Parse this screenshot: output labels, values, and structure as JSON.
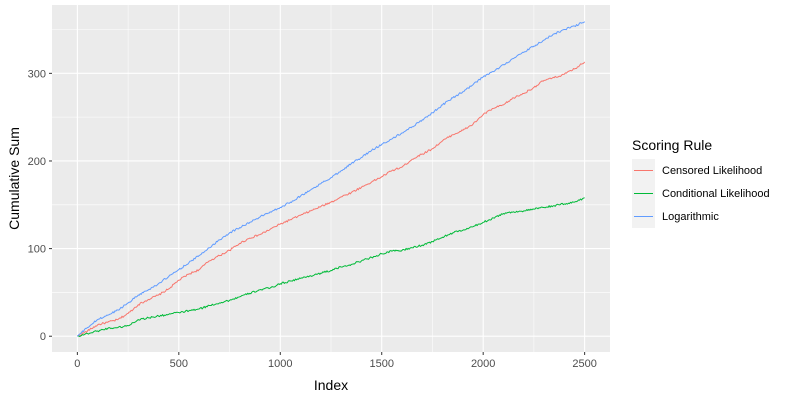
{
  "chart_data": {
    "type": "line",
    "title": "",
    "xlabel": "Index",
    "ylabel": "Cumulative Sum",
    "xlim": [
      -125,
      2625
    ],
    "ylim": [
      -18,
      378
    ],
    "x_ticks": [
      0,
      500,
      1000,
      1500,
      2000,
      2500
    ],
    "x_tick_labels": [
      "0",
      "500",
      "1000",
      "1500",
      "2000",
      "2500"
    ],
    "y_ticks": [
      0,
      100,
      200,
      300
    ],
    "y_tick_labels": [
      "0",
      "100",
      "200",
      "300"
    ],
    "grid": true,
    "legend_position": "right",
    "legend_title": "Scoring Rule",
    "panel_background": "#ebebeb",
    "grid_color": "#ffffff",
    "series": [
      {
        "name": "Censored Likelihood",
        "color": "#f8766d",
        "x": [
          0,
          50,
          100,
          150,
          200,
          250,
          300,
          350,
          400,
          450,
          500,
          550,
          600,
          650,
          700,
          750,
          800,
          850,
          900,
          950,
          1000,
          1050,
          1100,
          1150,
          1200,
          1250,
          1300,
          1350,
          1400,
          1450,
          1500,
          1550,
          1600,
          1650,
          1700,
          1750,
          1800,
          1850,
          1900,
          1950,
          2000,
          2050,
          2100,
          2150,
          2200,
          2250,
          2300,
          2350,
          2400,
          2450,
          2500
        ],
        "values": [
          0,
          6,
          13,
          16,
          19,
          26,
          36,
          42,
          47,
          54,
          64,
          71,
          76,
          86,
          92,
          98,
          106,
          112,
          116,
          122,
          128,
          133,
          138,
          143,
          148,
          153,
          159,
          164,
          170,
          176,
          182,
          189,
          193,
          202,
          208,
          214,
          223,
          230,
          235,
          242,
          253,
          260,
          264,
          272,
          277,
          284,
          292,
          295,
          299,
          305,
          313
        ]
      },
      {
        "name": "Conditional Likelihood",
        "color": "#00ba38",
        "x": [
          0,
          50,
          100,
          150,
          200,
          250,
          300,
          350,
          400,
          450,
          500,
          550,
          600,
          650,
          700,
          750,
          800,
          850,
          900,
          950,
          1000,
          1050,
          1100,
          1150,
          1200,
          1250,
          1300,
          1350,
          1400,
          1450,
          1500,
          1550,
          1600,
          1650,
          1700,
          1750,
          1800,
          1850,
          1900,
          1950,
          2000,
          2050,
          2100,
          2150,
          2200,
          2250,
          2300,
          2350,
          2400,
          2450,
          2500
        ],
        "values": [
          0,
          3,
          6,
          9,
          10,
          12,
          19,
          21,
          23,
          25,
          27,
          29,
          31,
          35,
          38,
          41,
          45,
          49,
          53,
          55,
          60,
          63,
          66,
          69,
          72,
          75,
          79,
          82,
          86,
          90,
          94,
          97,
          98,
          101,
          104,
          108,
          113,
          118,
          121,
          125,
          130,
          135,
          140,
          142,
          143,
          145,
          147,
          149,
          151,
          153,
          158
        ]
      },
      {
        "name": "Logarithmic",
        "color": "#619cff",
        "x": [
          0,
          50,
          100,
          150,
          200,
          250,
          300,
          350,
          400,
          450,
          500,
          550,
          600,
          650,
          700,
          750,
          800,
          850,
          900,
          950,
          1000,
          1050,
          1100,
          1150,
          1200,
          1250,
          1300,
          1350,
          1400,
          1450,
          1500,
          1550,
          1600,
          1650,
          1700,
          1750,
          1800,
          1850,
          1900,
          1950,
          2000,
          2050,
          2100,
          2150,
          2200,
          2250,
          2300,
          2350,
          2400,
          2450,
          2500
        ],
        "values": [
          0,
          10,
          19,
          24,
          30,
          38,
          47,
          53,
          60,
          68,
          76,
          84,
          92,
          101,
          110,
          118,
          124,
          130,
          136,
          142,
          147,
          153,
          160,
          167,
          174,
          181,
          189,
          197,
          204,
          212,
          219,
          225,
          232,
          239,
          247,
          255,
          264,
          272,
          279,
          287,
          296,
          302,
          310,
          317,
          324,
          331,
          338,
          345,
          350,
          354,
          359
        ]
      }
    ]
  }
}
